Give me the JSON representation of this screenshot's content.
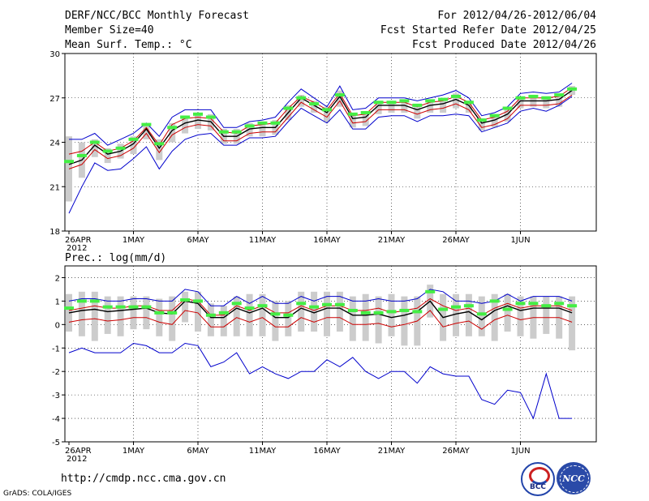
{
  "header": {
    "line1_left": "DERF/NCC/BCC Monthly Forecast",
    "line2_left": "Member Size=40",
    "line3_left": "Mean Surf. Temp.: °C",
    "line1_right": "For 2012/04/26-2012/06/04",
    "line2_right": "Fcst Started Refer Date 2012/04/25",
    "line3_right": "Fcst Produced Date 2012/04/26"
  },
  "footer": {
    "url": "http://cmdp.ncc.cma.gov.cn",
    "credit": "GrADS: COLA/IGES",
    "logo1_text": "BCC",
    "logo2_text": "NCC"
  },
  "colors": {
    "max_min": "#0000cc",
    "spread": "#cc0000",
    "mean": "#000000",
    "obs": "#44ee44",
    "bars": "#cccccc"
  },
  "chart_data": [
    {
      "type": "line",
      "title": "Mean Surf. Temp.: °C",
      "xlabel": "",
      "ylabel": "°C",
      "ylim": [
        18,
        30
      ],
      "yticks": [
        18,
        21,
        24,
        27,
        30
      ],
      "xticks": [
        {
          "day": 1,
          "label": "26APR",
          "sub": "2012"
        },
        {
          "day": 6,
          "label": "1MAY"
        },
        {
          "day": 11,
          "label": "6MAY"
        },
        {
          "day": 16,
          "label": "11MAY"
        },
        {
          "day": 21,
          "label": "16MAY"
        },
        {
          "day": 26,
          "label": "21MAY"
        },
        {
          "day": 31,
          "label": "26MAY"
        },
        {
          "day": 36,
          "label": "1JUN"
        }
      ],
      "x": [
        1,
        2,
        3,
        4,
        5,
        6,
        7,
        8,
        9,
        10,
        11,
        12,
        13,
        14,
        15,
        16,
        17,
        18,
        19,
        20,
        21,
        22,
        23,
        24,
        25,
        26,
        27,
        28,
        29,
        30,
        31,
        32,
        33,
        34,
        35,
        36,
        37,
        38,
        39,
        40
      ],
      "series": [
        {
          "name": "max",
          "values": [
            24.2,
            24.2,
            24.6,
            23.8,
            24.2,
            24.6,
            25.3,
            24.4,
            25.7,
            26.2,
            26.2,
            26.2,
            25.0,
            25.0,
            25.4,
            25.5,
            25.7,
            26.7,
            27.6,
            27.0,
            26.4,
            27.8,
            26.2,
            26.3,
            27.0,
            27.0,
            27.0,
            26.8,
            27.0,
            27.2,
            27.5,
            27.0,
            25.8,
            26.0,
            26.4,
            27.3,
            27.4,
            27.3,
            27.4,
            28.0
          ]
        },
        {
          "name": "upper",
          "values": [
            23.2,
            23.4,
            24.0,
            23.4,
            23.6,
            24.1,
            25.0,
            23.8,
            25.2,
            25.6,
            25.7,
            25.6,
            24.7,
            24.6,
            25.1,
            25.2,
            25.3,
            26.3,
            27.1,
            26.7,
            26.2,
            27.3,
            25.8,
            25.9,
            26.7,
            26.7,
            26.7,
            26.4,
            26.7,
            26.8,
            27.1,
            26.7,
            25.5,
            25.7,
            26.1,
            27.0,
            27.0,
            27.0,
            27.1,
            27.7
          ]
        },
        {
          "name": "mean",
          "values": [
            22.5,
            22.8,
            23.8,
            23.2,
            23.4,
            23.9,
            24.9,
            23.6,
            24.8,
            25.3,
            25.5,
            25.4,
            24.4,
            24.4,
            24.9,
            25.0,
            25.0,
            26.0,
            27.0,
            26.5,
            26.0,
            27.1,
            25.6,
            25.7,
            26.5,
            26.5,
            26.5,
            26.2,
            26.5,
            26.6,
            26.9,
            26.5,
            25.3,
            25.5,
            25.9,
            26.8,
            26.8,
            26.8,
            26.9,
            27.5
          ]
        },
        {
          "name": "lower",
          "values": [
            22.2,
            22.5,
            23.5,
            22.9,
            23.1,
            23.6,
            24.6,
            23.3,
            24.5,
            25.0,
            25.2,
            25.1,
            24.1,
            24.1,
            24.6,
            24.7,
            24.7,
            25.7,
            26.7,
            26.2,
            25.7,
            26.8,
            25.3,
            25.4,
            26.2,
            26.2,
            26.2,
            25.9,
            26.2,
            26.3,
            26.6,
            26.2,
            25.0,
            25.2,
            25.6,
            26.5,
            26.5,
            26.5,
            26.6,
            27.2
          ]
        },
        {
          "name": "min",
          "values": [
            19.2,
            21.0,
            22.6,
            22.1,
            22.2,
            22.9,
            23.7,
            22.2,
            23.4,
            24.2,
            24.5,
            24.6,
            23.8,
            23.8,
            24.3,
            24.3,
            24.4,
            25.4,
            26.3,
            25.8,
            25.3,
            26.2,
            24.9,
            24.9,
            25.7,
            25.8,
            25.8,
            25.4,
            25.8,
            25.8,
            25.9,
            25.8,
            24.7,
            25.0,
            25.3,
            26.1,
            26.3,
            26.1,
            26.5,
            27.1
          ]
        },
        {
          "name": "obs",
          "values": [
            22.7,
            23.1,
            24.0,
            23.4,
            23.6,
            24.2,
            25.2,
            23.9,
            25.0,
            25.7,
            25.9,
            25.7,
            24.7,
            24.7,
            25.1,
            25.3,
            25.3,
            26.3,
            27.0,
            26.6,
            26.2,
            27.2,
            25.9,
            26.0,
            26.7,
            26.7,
            26.8,
            26.5,
            26.8,
            26.9,
            27.1,
            26.7,
            25.5,
            25.8,
            26.3,
            27.0,
            27.1,
            27.0,
            27.2,
            27.6
          ]
        },
        {
          "name": "bar_hi",
          "values": [
            24.4,
            24.0,
            24.2,
            23.6,
            23.9,
            24.4,
            25.2,
            24.2,
            25.3,
            25.8,
            25.9,
            25.9,
            24.9,
            24.9,
            25.3,
            25.4,
            25.5,
            26.5,
            27.2,
            26.8,
            26.4,
            27.5,
            26.0,
            26.1,
            26.8,
            26.8,
            26.8,
            26.6,
            26.8,
            26.9,
            27.3,
            26.8,
            25.6,
            25.8,
            26.2,
            27.1,
            27.2,
            27.1,
            27.2,
            27.8
          ]
        },
        {
          "name": "bar_lo",
          "values": [
            20.0,
            21.6,
            23.0,
            22.6,
            22.9,
            23.2,
            24.2,
            22.8,
            24.0,
            24.6,
            24.9,
            24.8,
            23.9,
            23.9,
            24.4,
            24.4,
            24.5,
            25.5,
            26.4,
            26.0,
            25.4,
            26.4,
            25.0,
            25.1,
            25.9,
            26.0,
            26.0,
            25.6,
            26.0,
            26.0,
            26.3,
            26.0,
            24.8,
            25.0,
            25.4,
            26.3,
            26.4,
            26.3,
            26.4,
            27.2
          ]
        }
      ]
    },
    {
      "type": "line",
      "title": "Prec.: log(mm/d)",
      "xlabel": "",
      "ylabel": "log(mm/d)",
      "ylim": [
        -5,
        2.5
      ],
      "yticks": [
        -5,
        -4,
        -3,
        -2,
        -1,
        0,
        1,
        2
      ],
      "xticks": [
        {
          "day": 1,
          "label": "26APR",
          "sub": "2012"
        },
        {
          "day": 6,
          "label": "1MAY"
        },
        {
          "day": 11,
          "label": "6MAY"
        },
        {
          "day": 16,
          "label": "11MAY"
        },
        {
          "day": 21,
          "label": "16MAY"
        },
        {
          "day": 26,
          "label": "21MAY"
        },
        {
          "day": 31,
          "label": "26MAY"
        },
        {
          "day": 36,
          "label": "1JUN"
        }
      ],
      "x": [
        1,
        2,
        3,
        4,
        5,
        6,
        7,
        8,
        9,
        10,
        11,
        12,
        13,
        14,
        15,
        16,
        17,
        18,
        19,
        20,
        21,
        22,
        23,
        24,
        25,
        26,
        27,
        28,
        29,
        30,
        31,
        32,
        33,
        34,
        35,
        36,
        37,
        38,
        39,
        40
      ],
      "series": [
        {
          "name": "max",
          "values": [
            1.0,
            1.1,
            1.1,
            1.0,
            1.0,
            1.1,
            1.1,
            1.0,
            1.0,
            1.5,
            1.4,
            0.8,
            0.8,
            1.2,
            0.9,
            1.2,
            0.9,
            0.9,
            1.2,
            1.0,
            1.2,
            1.2,
            1.0,
            1.0,
            1.1,
            1.0,
            1.0,
            1.1,
            1.5,
            1.4,
            1.0,
            1.0,
            0.9,
            1.0,
            1.3,
            1.0,
            1.2,
            1.2,
            1.2,
            1.0
          ]
        },
        {
          "name": "upper",
          "values": [
            0.6,
            0.7,
            0.8,
            0.7,
            0.7,
            0.8,
            0.8,
            0.6,
            0.6,
            1.1,
            1.0,
            0.4,
            0.4,
            0.8,
            0.6,
            0.8,
            0.5,
            0.5,
            0.8,
            0.6,
            0.8,
            0.8,
            0.6,
            0.6,
            0.7,
            0.5,
            0.6,
            0.7,
            1.1,
            0.8,
            0.6,
            0.7,
            0.4,
            0.7,
            0.9,
            0.7,
            0.8,
            0.8,
            0.8,
            0.6
          ]
        },
        {
          "name": "mean",
          "values": [
            0.5,
            0.6,
            0.65,
            0.55,
            0.6,
            0.65,
            0.7,
            0.5,
            0.45,
            1.0,
            0.9,
            0.3,
            0.3,
            0.7,
            0.5,
            0.7,
            0.3,
            0.3,
            0.7,
            0.5,
            0.7,
            0.7,
            0.4,
            0.4,
            0.45,
            0.3,
            0.4,
            0.55,
            1.0,
            0.3,
            0.45,
            0.55,
            0.2,
            0.6,
            0.8,
            0.6,
            0.7,
            0.7,
            0.7,
            0.5
          ]
        },
        {
          "name": "lower",
          "values": [
            0.1,
            0.2,
            0.25,
            0.15,
            0.2,
            0.3,
            0.3,
            0.1,
            0.0,
            0.6,
            0.5,
            -0.1,
            -0.1,
            0.3,
            0.1,
            0.3,
            -0.1,
            -0.1,
            0.3,
            0.1,
            0.3,
            0.3,
            0.0,
            0.0,
            0.05,
            -0.1,
            0.0,
            0.15,
            0.6,
            -0.1,
            0.05,
            0.15,
            -0.2,
            0.2,
            0.4,
            0.2,
            0.3,
            0.3,
            0.3,
            0.1
          ]
        },
        {
          "name": "min",
          "values": [
            -1.2,
            -1.0,
            -1.2,
            -1.2,
            -1.2,
            -0.8,
            -0.9,
            -1.2,
            -1.2,
            -0.8,
            -0.9,
            -1.8,
            -1.6,
            -1.2,
            -2.1,
            -1.8,
            -2.1,
            -2.3,
            -2.0,
            -2.0,
            -1.5,
            -1.8,
            -1.4,
            -2.0,
            -2.3,
            -2.0,
            -2.0,
            -2.5,
            -1.8,
            -2.1,
            -2.2,
            -2.2,
            -3.2,
            -3.4,
            -2.8,
            -2.9,
            -4.0,
            -2.1,
            -4.0,
            -4.0
          ]
        },
        {
          "name": "obs",
          "values": [
            0.7,
            1.0,
            1.0,
            0.75,
            0.75,
            0.75,
            0.75,
            0.5,
            0.5,
            1.05,
            1.0,
            0.4,
            0.5,
            0.9,
            0.7,
            0.8,
            0.45,
            0.4,
            0.9,
            0.75,
            0.85,
            0.85,
            0.6,
            0.5,
            0.5,
            0.55,
            0.6,
            0.55,
            1.4,
            0.65,
            0.75,
            0.8,
            0.45,
            1.0,
            0.65,
            0.9,
            0.9,
            0.8,
            0.9,
            0.8
          ]
        },
        {
          "name": "bar_hi",
          "values": [
            1.3,
            1.4,
            1.4,
            1.2,
            1.2,
            1.2,
            1.2,
            1.1,
            1.2,
            1.4,
            1.4,
            0.9,
            0.8,
            1.2,
            1.3,
            1.3,
            1.0,
            1.0,
            1.4,
            1.4,
            1.4,
            1.4,
            1.2,
            1.3,
            1.2,
            1.3,
            1.2,
            1.2,
            1.7,
            1.3,
            1.3,
            1.3,
            1.2,
            1.3,
            1.3,
            1.2,
            1.2,
            1.2,
            1.2,
            1.2
          ]
        },
        {
          "name": "bar_lo",
          "values": [
            -0.3,
            -0.5,
            -0.7,
            -0.4,
            -0.5,
            -0.2,
            -0.2,
            -0.5,
            -0.7,
            0.1,
            -0.3,
            -0.5,
            -0.5,
            -0.5,
            -0.5,
            -0.5,
            -0.7,
            -0.5,
            -0.3,
            -0.3,
            -0.5,
            -0.3,
            -0.7,
            -0.7,
            -0.8,
            -0.5,
            -0.9,
            -0.9,
            0.3,
            -0.7,
            -0.5,
            -0.5,
            -0.5,
            -0.7,
            -0.3,
            -0.5,
            -0.6,
            -0.4,
            -0.6,
            -1.1
          ]
        }
      ]
    }
  ]
}
